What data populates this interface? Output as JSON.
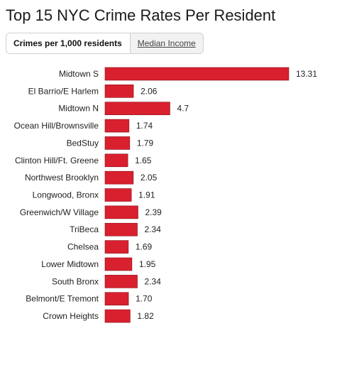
{
  "title": "Top 15 NYC Crime Rates Per Resident",
  "tabs": [
    {
      "label": "Crimes per 1,000 residents",
      "active": true
    },
    {
      "label": "Median Income",
      "active": false
    }
  ],
  "colors": {
    "bar": "#d9202f",
    "bar_border": "#8a0d16"
  },
  "chart_data": {
    "type": "bar",
    "orientation": "horizontal",
    "categories": [
      "Midtown S",
      "El Barrio/E Harlem",
      "Midtown N",
      "Ocean Hill/Brownsville",
      "BedStuy",
      "Clinton Hill/Ft. Greene",
      "Northwest Brooklyn",
      "Longwood, Bronx",
      "Greenwich/W Village",
      "TriBeca",
      "Chelsea",
      "Lower Midtown",
      "South Bronx",
      "Belmont/E Tremont",
      "Crown Heights"
    ],
    "values": [
      13.31,
      2.06,
      4.7,
      1.74,
      1.79,
      1.65,
      2.05,
      1.91,
      2.39,
      2.34,
      1.69,
      1.95,
      2.34,
      1.7,
      1.82
    ],
    "value_labels": [
      "13.31",
      "2.06",
      "4.7",
      "1.74",
      "1.79",
      "1.65",
      "2.05",
      "1.91",
      "2.39",
      "2.34",
      "1.69",
      "1.95",
      "2.34",
      "1.70",
      "1.82"
    ],
    "title": "Top 15 NYC Crime Rates Per Resident",
    "xlabel": "",
    "ylabel": "",
    "xlim": [
      0,
      13.31
    ],
    "grid": false
  }
}
